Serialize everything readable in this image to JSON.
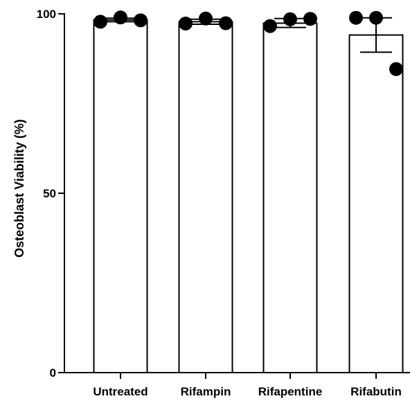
{
  "chart_data": {
    "type": "bar",
    "ylabel": "Osteoblast Viability (%)",
    "xlabel": "",
    "ylim": [
      0,
      100
    ],
    "yticks": [
      0,
      50,
      100
    ],
    "categories": [
      "Untreated",
      "Rifampin",
      "Rifapentine",
      "Rifabutin"
    ],
    "values": [
      98.3,
      97.8,
      97.4,
      94.1
    ],
    "error_upper": [
      98.8,
      98.5,
      98.7,
      98.9
    ],
    "error_lower": [
      97.8,
      97.1,
      96.2,
      89.3
    ],
    "points": [
      [
        97.8,
        99.0,
        98.2
      ],
      [
        97.3,
        98.7,
        97.4
      ],
      [
        96.6,
        98.5,
        98.6
      ],
      [
        98.9,
        98.9,
        84.6
      ]
    ],
    "grid": false,
    "legend": "none",
    "colors": {
      "bar_fill": "#ffffff",
      "stroke": "#000000",
      "point": "#000000"
    }
  }
}
